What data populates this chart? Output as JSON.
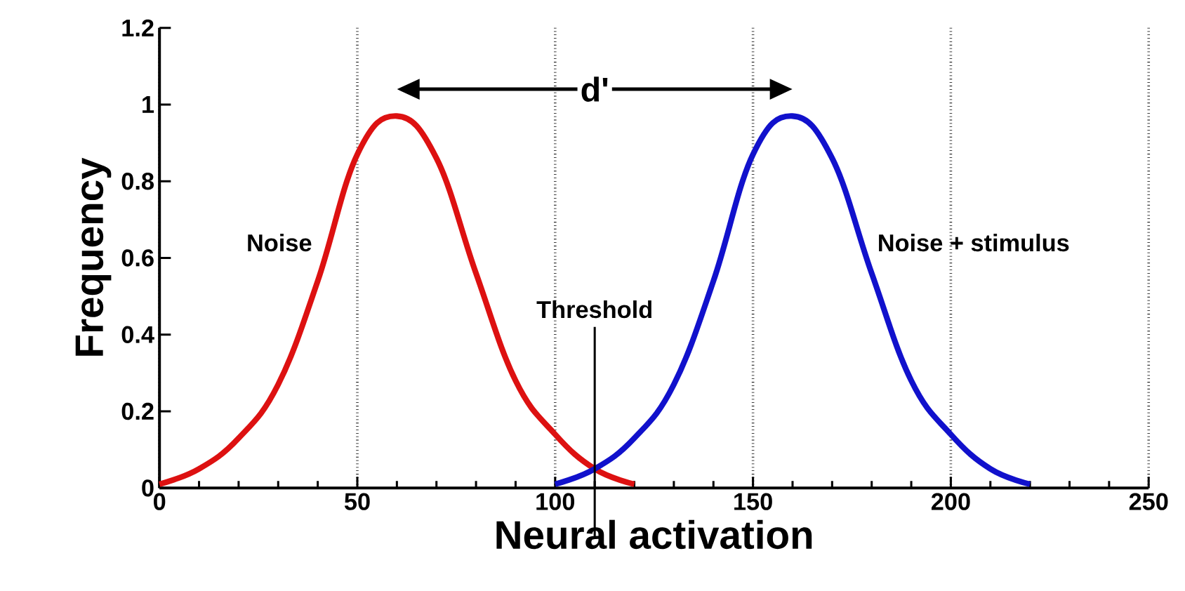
{
  "chart_data": {
    "type": "line",
    "xlabel": "Neural activation",
    "ylabel": "Frequency",
    "xlim": [
      0,
      250
    ],
    "ylim": [
      0,
      1.2
    ],
    "xticks": [
      0,
      50,
      100,
      150,
      200,
      250
    ],
    "yticks": [
      0,
      0.2,
      0.4,
      0.6,
      0.8,
      1,
      1.2
    ],
    "grid": "x",
    "legend": false,
    "marker": "none",
    "line_style": "solid",
    "series": [
      {
        "name": "Noise",
        "color": "#dd1111",
        "x": [
          0,
          10,
          20,
          30,
          40,
          50,
          60,
          70,
          80,
          90,
          100,
          110,
          120
        ],
        "values": [
          0.01,
          0.05,
          0.13,
          0.27,
          0.54,
          0.87,
          0.97,
          0.86,
          0.56,
          0.28,
          0.14,
          0.05,
          0.01
        ]
      },
      {
        "name": "Noise + stimulus",
        "color": "#1111cc",
        "x": [
          100,
          110,
          120,
          130,
          140,
          150,
          160,
          170,
          180,
          190,
          200,
          210,
          220
        ],
        "values": [
          0.01,
          0.05,
          0.13,
          0.27,
          0.54,
          0.87,
          0.97,
          0.86,
          0.56,
          0.28,
          0.14,
          0.05,
          0.01
        ]
      }
    ],
    "ref_lines": [
      {
        "axis": "x",
        "value": 110,
        "label": "Threshold",
        "color": "#000000",
        "line_style": "solid"
      }
    ],
    "annotations": [
      {
        "text": "d'",
        "x": 110,
        "y": 1.04
      }
    ]
  }
}
